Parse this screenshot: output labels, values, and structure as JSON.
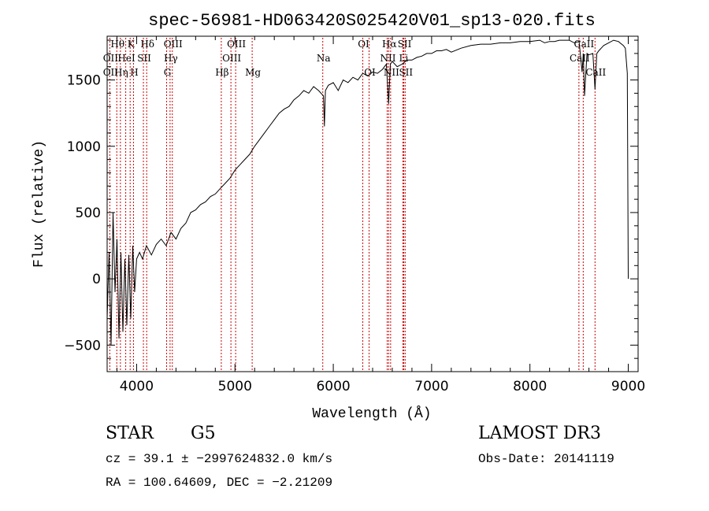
{
  "chart_data": {
    "type": "line",
    "title": "spec-56981-HD063420S025420V01_sp13-020.fits",
    "xlabel": "Wavelength (Å)",
    "ylabel": "Flux (relative)",
    "xlim": [
      3700,
      9100
    ],
    "ylim": [
      -700,
      1830
    ],
    "xticks": [
      4000,
      5000,
      6000,
      7000,
      8000,
      9000
    ],
    "yticks": [
      -500,
      0,
      500,
      1000,
      1500
    ],
    "grid": false,
    "legend": "none",
    "line_color": "#000000",
    "marker_color": "#cc0000",
    "series": [
      {
        "name": "",
        "x": [
          3700,
          3720,
          3740,
          3760,
          3780,
          3800,
          3820,
          3840,
          3860,
          3880,
          3900,
          3920,
          3940,
          3960,
          3980,
          4000,
          4030,
          4060,
          4100,
          4150,
          4200,
          4250,
          4300,
          4350,
          4400,
          4450,
          4500,
          4550,
          4600,
          4650,
          4700,
          4750,
          4800,
          4850,
          4900,
          4950,
          5000,
          5050,
          5100,
          5150,
          5200,
          5250,
          5300,
          5350,
          5400,
          5450,
          5500,
          5550,
          5600,
          5650,
          5700,
          5750,
          5800,
          5850,
          5900,
          5910,
          5920,
          5950,
          6000,
          6050,
          6100,
          6150,
          6200,
          6250,
          6300,
          6350,
          6400,
          6450,
          6500,
          6540,
          6563,
          6580,
          6600,
          6650,
          6700,
          6750,
          6800,
          6850,
          6900,
          6950,
          7000,
          7050,
          7100,
          7150,
          7200,
          7300,
          7400,
          7500,
          7600,
          7700,
          7800,
          7900,
          8000,
          8100,
          8150,
          8200,
          8250,
          8300,
          8350,
          8400,
          8450,
          8500,
          8530,
          8542,
          8555,
          8580,
          8600,
          8640,
          8662,
          8680,
          8700,
          8750,
          8800,
          8850,
          8900,
          8950,
          8970,
          8990,
          9000
        ],
        "y": [
          -300,
          200,
          -500,
          500,
          -100,
          300,
          -450,
          200,
          -400,
          150,
          -350,
          180,
          -300,
          250,
          -100,
          150,
          200,
          150,
          250,
          180,
          260,
          300,
          250,
          350,
          300,
          380,
          420,
          500,
          520,
          560,
          580,
          620,
          640,
          680,
          720,
          760,
          820,
          860,
          900,
          940,
          1000,
          1050,
          1100,
          1150,
          1200,
          1250,
          1280,
          1300,
          1350,
          1380,
          1420,
          1400,
          1450,
          1420,
          1380,
          1150,
          1420,
          1460,
          1480,
          1420,
          1500,
          1480,
          1520,
          1500,
          1550,
          1530,
          1560,
          1550,
          1580,
          1620,
          1320,
          1620,
          1640,
          1600,
          1620,
          1650,
          1650,
          1670,
          1680,
          1700,
          1700,
          1720,
          1720,
          1730,
          1710,
          1740,
          1760,
          1770,
          1770,
          1780,
          1780,
          1790,
          1790,
          1800,
          1780,
          1790,
          1790,
          1800,
          1800,
          1800,
          1780,
          1790,
          1560,
          1700,
          1380,
          1700,
          1690,
          1700,
          1430,
          1700,
          1720,
          1760,
          1780,
          1800,
          1790,
          1760,
          1740,
          1550,
          0
        ]
      }
    ],
    "lines": [
      {
        "label": "Hθ",
        "x": 3798,
        "row": 0
      },
      {
        "label": "OII",
        "x": 3727,
        "row": 1
      },
      {
        "label": "OII",
        "x": 3727,
        "row": 2
      },
      {
        "label": "K",
        "x": 3934,
        "row": 0
      },
      {
        "label": "HeI",
        "x": 3889,
        "row": 1
      },
      {
        "label": "Hη",
        "x": 3835,
        "row": 2
      },
      {
        "label": "SII",
        "x": 4069,
        "row": 1
      },
      {
        "label": "H",
        "x": 3968,
        "row": 2
      },
      {
        "label": "Hδ",
        "x": 4102,
        "row": 0
      },
      {
        "label": "OIII",
        "x": 4363,
        "row": 0
      },
      {
        "label": "Hγ",
        "x": 4340,
        "row": 1
      },
      {
        "label": "G",
        "x": 4305,
        "row": 2
      },
      {
        "label": "Hβ",
        "x": 4861,
        "row": 2
      },
      {
        "label": "OIII",
        "x": 5007,
        "row": 0
      },
      {
        "label": "OIII",
        "x": 4959,
        "row": 1
      },
      {
        "label": "Mg",
        "x": 5175,
        "row": 2
      },
      {
        "label": "Na",
        "x": 5893,
        "row": 1
      },
      {
        "label": "OI",
        "x": 6300,
        "row": 0
      },
      {
        "label": "OI",
        "x": 6364,
        "row": 2
      },
      {
        "label": "Hα",
        "x": 6563,
        "row": 0
      },
      {
        "label": "SII",
        "x": 6717,
        "row": 0
      },
      {
        "label": "NII",
        "x": 6548,
        "row": 1
      },
      {
        "label": "Li",
        "x": 6708,
        "row": 1
      },
      {
        "label": "NII",
        "x": 6583,
        "row": 2
      },
      {
        "label": "SII",
        "x": 6731,
        "row": 2
      },
      {
        "label": "CaII",
        "x": 8542,
        "row": 0
      },
      {
        "label": "CaII",
        "x": 8498,
        "row": 1
      },
      {
        "label": "CaII",
        "x": 8662,
        "row": 2
      }
    ]
  },
  "info": {
    "class": "STAR",
    "subclass": "G5",
    "survey": "LAMOST DR3",
    "cz": "cz = 39.1 ± −2997624832.0 km/s",
    "obs_date": "Obs-Date: 20141119",
    "coords": "RA = 100.64609, DEC =  −2.21209"
  }
}
